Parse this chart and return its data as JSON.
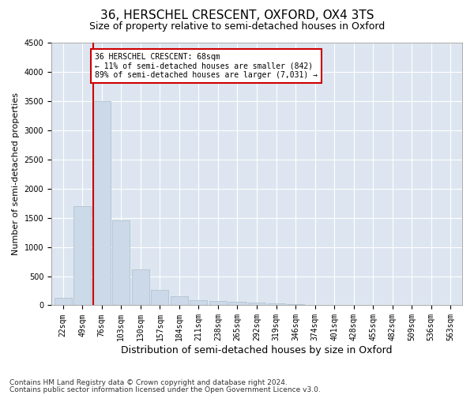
{
  "title1": "36, HERSCHEL CRESCENT, OXFORD, OX4 3TS",
  "title2": "Size of property relative to semi-detached houses in Oxford",
  "xlabel": "Distribution of semi-detached houses by size in Oxford",
  "ylabel": "Number of semi-detached properties",
  "categories": [
    "22sqm",
    "49sqm",
    "76sqm",
    "103sqm",
    "130sqm",
    "157sqm",
    "184sqm",
    "211sqm",
    "238sqm",
    "265sqm",
    "292sqm",
    "319sqm",
    "346sqm",
    "374sqm",
    "401sqm",
    "428sqm",
    "455sqm",
    "482sqm",
    "509sqm",
    "536sqm",
    "563sqm"
  ],
  "values": [
    130,
    1700,
    3500,
    1450,
    620,
    270,
    150,
    90,
    75,
    55,
    45,
    35,
    25,
    12,
    7,
    4,
    3,
    2,
    1,
    1,
    1
  ],
  "bar_color": "#ccd9e8",
  "bar_edgecolor": "#aabdcc",
  "ylim": [
    0,
    4500
  ],
  "yticks": [
    0,
    500,
    1000,
    1500,
    2000,
    2500,
    3000,
    3500,
    4000,
    4500
  ],
  "vline_color": "#cc0000",
  "annotation_text": "36 HERSCHEL CRESCENT: 68sqm\n← 11% of semi-detached houses are smaller (842)\n89% of semi-detached houses are larger (7,031) →",
  "annotation_box_edgecolor": "#cc0000",
  "annotation_box_facecolor": "#ffffff",
  "footnote1": "Contains HM Land Registry data © Crown copyright and database right 2024.",
  "footnote2": "Contains public sector information licensed under the Open Government Licence v3.0.",
  "background_color": "#dde6f0",
  "grid_color": "#ffffff",
  "title_fontsize": 11,
  "subtitle_fontsize": 9,
  "axis_label_fontsize": 8,
  "tick_fontsize": 7,
  "annotation_fontsize": 7,
  "footnote_fontsize": 6.5
}
